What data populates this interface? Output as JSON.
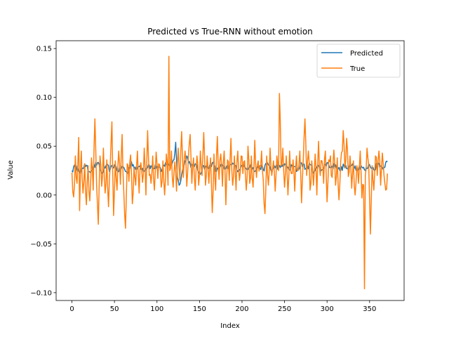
{
  "chart_data": {
    "type": "line",
    "title": "Predicted vs True-RNN without emotion",
    "xlabel": "Index",
    "ylabel": "Value",
    "xlim": [
      -18.6,
      390.6
    ],
    "ylim": [
      -0.108,
      0.158
    ],
    "xticks": [
      0,
      50,
      100,
      150,
      200,
      250,
      300,
      350
    ],
    "yticks": [
      -0.1,
      -0.05,
      0.0,
      0.05,
      0.1,
      0.15
    ],
    "ytick_labels": [
      "−0.10",
      "−0.05",
      "0.00",
      "0.05",
      "0.10",
      "0.15"
    ],
    "legend_position": "upper right",
    "grid": false,
    "n_points": 372,
    "series": [
      {
        "name": "Predicted",
        "color": "#1f77b4",
        "anchors": [
          [
            0,
            0.025
          ],
          [
            5,
            0.03
          ],
          [
            10,
            0.022
          ],
          [
            15,
            0.032
          ],
          [
            20,
            0.024
          ],
          [
            25,
            0.028
          ],
          [
            30,
            0.033
          ],
          [
            35,
            0.022
          ],
          [
            40,
            0.03
          ],
          [
            45,
            0.026
          ],
          [
            50,
            0.031
          ],
          [
            55,
            0.024
          ],
          [
            60,
            0.029
          ],
          [
            65,
            0.022
          ],
          [
            70,
            0.034
          ],
          [
            75,
            0.026
          ],
          [
            80,
            0.03
          ],
          [
            85,
            0.025
          ],
          [
            90,
            0.031
          ],
          [
            95,
            0.027
          ],
          [
            100,
            0.03
          ],
          [
            105,
            0.024
          ],
          [
            110,
            0.033
          ],
          [
            115,
            0.03
          ],
          [
            120,
            0.036
          ],
          [
            122,
            0.054
          ],
          [
            124,
            0.018
          ],
          [
            126,
            0.01
          ],
          [
            130,
            0.025
          ],
          [
            135,
            0.04
          ],
          [
            140,
            0.028
          ],
          [
            145,
            0.032
          ],
          [
            150,
            0.022
          ],
          [
            155,
            0.03
          ],
          [
            160,
            0.027
          ],
          [
            165,
            0.033
          ],
          [
            170,
            0.024
          ],
          [
            175,
            0.031
          ],
          [
            180,
            0.026
          ],
          [
            185,
            0.029
          ],
          [
            190,
            0.032
          ],
          [
            195,
            0.025
          ],
          [
            200,
            0.03
          ],
          [
            205,
            0.027
          ],
          [
            210,
            0.031
          ],
          [
            215,
            0.024
          ],
          [
            220,
            0.03
          ],
          [
            225,
            0.026
          ],
          [
            230,
            0.033
          ],
          [
            235,
            0.025
          ],
          [
            240,
            0.03
          ],
          [
            245,
            0.028
          ],
          [
            250,
            0.032
          ],
          [
            255,
            0.026
          ],
          [
            260,
            0.03
          ],
          [
            265,
            0.025
          ],
          [
            270,
            0.033
          ],
          [
            275,
            0.027
          ],
          [
            280,
            0.031
          ],
          [
            285,
            0.024
          ],
          [
            290,
            0.03
          ],
          [
            295,
            0.026
          ],
          [
            300,
            0.033
          ],
          [
            305,
            0.028
          ],
          [
            310,
            0.031
          ],
          [
            315,
            0.025
          ],
          [
            320,
            0.03
          ],
          [
            325,
            0.026
          ],
          [
            330,
            0.032
          ],
          [
            335,
            0.027
          ],
          [
            340,
            0.03
          ],
          [
            345,
            0.025
          ],
          [
            350,
            0.031
          ],
          [
            355,
            0.026
          ],
          [
            360,
            0.033
          ],
          [
            365,
            0.028
          ],
          [
            371,
            0.034
          ]
        ]
      },
      {
        "name": "True",
        "color": "#ff7f0e",
        "anchors": [
          [
            0,
            0.023
          ],
          [
            2,
            -0.002
          ],
          [
            4,
            0.04
          ],
          [
            6,
            0.012
          ],
          [
            8,
            0.059
          ],
          [
            9,
            -0.016
          ],
          [
            11,
            0.045
          ],
          [
            13,
            0.002
          ],
          [
            15,
            0.032
          ],
          [
            17,
            -0.01
          ],
          [
            19,
            0.03
          ],
          [
            21,
            -0.006
          ],
          [
            23,
            0.038
          ],
          [
            25,
            0.005
          ],
          [
            27,
            0.078
          ],
          [
            29,
            0.01
          ],
          [
            31,
            -0.03
          ],
          [
            33,
            0.04
          ],
          [
            35,
            0.009
          ],
          [
            37,
            0.048
          ],
          [
            39,
            0.002
          ],
          [
            41,
            0.036
          ],
          [
            43,
            -0.012
          ],
          [
            45,
            0.03
          ],
          [
            47,
            0.075
          ],
          [
            49,
            -0.021
          ],
          [
            51,
            0.035
          ],
          [
            53,
            0.005
          ],
          [
            55,
            0.045
          ],
          [
            57,
            0.011
          ],
          [
            59,
            0.062
          ],
          [
            61,
            0.003
          ],
          [
            63,
            -0.034
          ],
          [
            65,
            0.032
          ],
          [
            67,
            0.014
          ],
          [
            69,
            0.041
          ],
          [
            71,
            -0.009
          ],
          [
            73,
            0.028
          ],
          [
            75,
            0.01
          ],
          [
            77,
            0.045
          ],
          [
            79,
            0.002
          ],
          [
            81,
            0.033
          ],
          [
            83,
            0.013
          ],
          [
            85,
            0.048
          ],
          [
            87,
            0.0
          ],
          [
            89,
            0.066
          ],
          [
            91,
            0.02
          ],
          [
            93,
            0.012
          ],
          [
            95,
            0.04
          ],
          [
            97,
            0.005
          ],
          [
            99,
            0.044
          ],
          [
            101,
            0.017
          ],
          [
            103,
            0.031
          ],
          [
            105,
            0.008
          ],
          [
            107,
            0.035
          ],
          [
            109,
            0.0
          ],
          [
            111,
            0.042
          ],
          [
            113,
            0.01
          ],
          [
            114,
            0.142
          ],
          [
            115,
            0.025
          ],
          [
            117,
            0.045
          ],
          [
            119,
            0.008
          ],
          [
            121,
            0.034
          ],
          [
            123,
            0.004
          ],
          [
            125,
            0.048
          ],
          [
            127,
            0.015
          ],
          [
            129,
            0.065
          ],
          [
            131,
            0.018
          ],
          [
            133,
            0.045
          ],
          [
            135,
            0.009
          ],
          [
            137,
            0.04
          ],
          [
            139,
            0.062
          ],
          [
            141,
            0.012
          ],
          [
            143,
            0.038
          ],
          [
            145,
            0.005
          ],
          [
            147,
            0.04
          ],
          [
            149,
            0.01
          ],
          [
            151,
            0.045
          ],
          [
            153,
            0.02
          ],
          [
            155,
            0.064
          ],
          [
            157,
            0.01
          ],
          [
            159,
            0.04
          ],
          [
            161,
            0.012
          ],
          [
            163,
            0.038
          ],
          [
            165,
            -0.018
          ],
          [
            167,
            0.042
          ],
          [
            169,
            0.005
          ],
          [
            171,
            0.06
          ],
          [
            173,
            0.016
          ],
          [
            175,
            0.042
          ],
          [
            177,
            0.009
          ],
          [
            179,
            0.045
          ],
          [
            181,
            -0.01
          ],
          [
            183,
            0.036
          ],
          [
            185,
            0.015
          ],
          [
            187,
            0.058
          ],
          [
            189,
            0.01
          ],
          [
            191,
            0.04
          ],
          [
            193,
            0.005
          ],
          [
            195,
            0.045
          ],
          [
            197,
            0.015
          ],
          [
            199,
            0.04
          ],
          [
            201,
            0.022
          ],
          [
            203,
            0.035
          ],
          [
            205,
            0.005
          ],
          [
            207,
            0.05
          ],
          [
            209,
            0.012
          ],
          [
            211,
            0.04
          ],
          [
            213,
            0.008
          ],
          [
            215,
            0.056
          ],
          [
            217,
            0.018
          ],
          [
            219,
            0.035
          ],
          [
            221,
            0.03
          ],
          [
            223,
            0.045
          ],
          [
            225,
            0.015
          ],
          [
            227,
            -0.019
          ],
          [
            229,
            0.04
          ],
          [
            231,
            0.01
          ],
          [
            233,
            0.048
          ],
          [
            235,
            0.02
          ],
          [
            237,
            0.035
          ],
          [
            239,
            0.004
          ],
          [
            241,
            0.04
          ],
          [
            243,
            0.025
          ],
          [
            244,
            0.104
          ],
          [
            246,
            0.03
          ],
          [
            248,
            0.048
          ],
          [
            250,
            0.008
          ],
          [
            252,
            0.04
          ],
          [
            254,
            0.0
          ],
          [
            256,
            0.045
          ],
          [
            258,
            0.022
          ],
          [
            260,
            0.036
          ],
          [
            262,
            0.004
          ],
          [
            264,
            0.04
          ],
          [
            266,
            0.025
          ],
          [
            268,
            0.045
          ],
          [
            270,
            -0.008
          ],
          [
            272,
            0.035
          ],
          [
            274,
            0.078
          ],
          [
            276,
            0.02
          ],
          [
            278,
            0.045
          ],
          [
            280,
            0.005
          ],
          [
            282,
            0.035
          ],
          [
            284,
            0.01
          ],
          [
            286,
            0.042
          ],
          [
            288,
            0.0
          ],
          [
            290,
            0.055
          ],
          [
            292,
            0.02
          ],
          [
            294,
            0.035
          ],
          [
            296,
            0.012
          ],
          [
            298,
            0.045
          ],
          [
            300,
            -0.007
          ],
          [
            302,
            0.036
          ],
          [
            304,
            0.04
          ],
          [
            306,
            0.018
          ],
          [
            308,
            0.046
          ],
          [
            310,
            0.01
          ],
          [
            312,
            0.038
          ],
          [
            314,
            -0.005
          ],
          [
            316,
            0.034
          ],
          [
            318,
            0.045
          ],
          [
            319,
            0.066
          ],
          [
            321,
            0.028
          ],
          [
            323,
            0.058
          ],
          [
            325,
            0.019
          ],
          [
            327,
            0.04
          ],
          [
            329,
            0.007
          ],
          [
            331,
            0.035
          ],
          [
            333,
            0.0
          ],
          [
            335,
            0.03
          ],
          [
            337,
            0.012
          ],
          [
            339,
            0.045
          ],
          [
            341,
            -0.003
          ],
          [
            343,
            0.01
          ],
          [
            344,
            -0.096
          ],
          [
            345,
            0.02
          ],
          [
            347,
            0.048
          ],
          [
            349,
            0.03
          ],
          [
            351,
            -0.04
          ],
          [
            353,
            0.03
          ],
          [
            355,
            0.005
          ],
          [
            357,
            0.04
          ],
          [
            359,
            0.02
          ],
          [
            361,
            0.045
          ],
          [
            363,
            0.01
          ],
          [
            365,
            0.043
          ],
          [
            367,
            0.02
          ],
          [
            369,
            0.005
          ],
          [
            371,
            0.022
          ]
        ]
      }
    ]
  }
}
